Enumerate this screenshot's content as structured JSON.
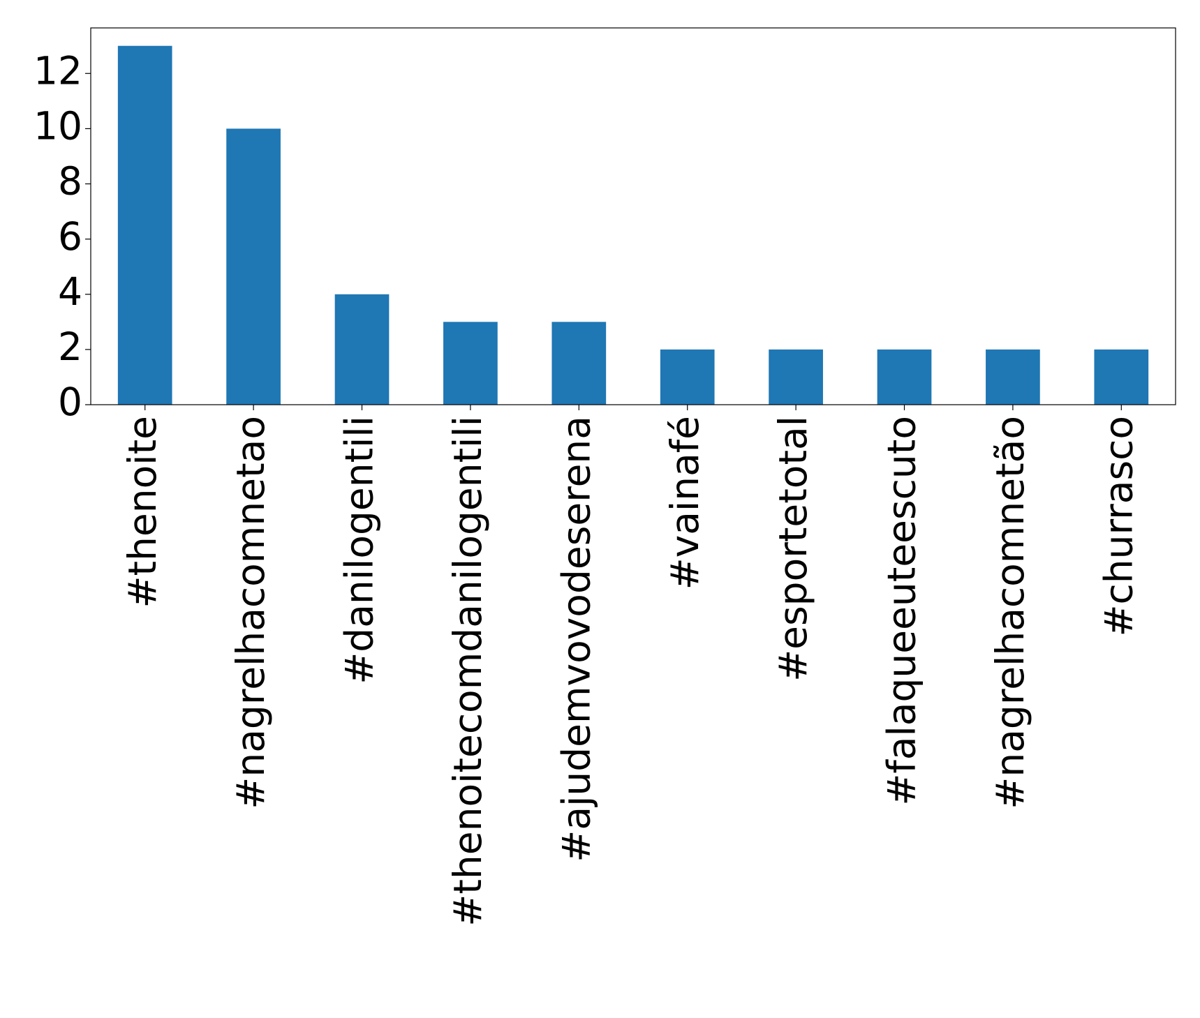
{
  "chart_data": {
    "type": "bar",
    "categories": [
      "#thenoite",
      "#nagrelhacomnetao",
      "#danilogentili",
      "#thenoitecomdanilogentili",
      "#ajudemvovodeserena",
      "#vainafé",
      "#esportetotal",
      "#falaqueeuteescuto",
      "#nagrelhacomnetão",
      "#churrasco"
    ],
    "values": [
      13,
      10,
      4,
      3,
      3,
      2,
      2,
      2,
      2,
      2
    ],
    "color": "#1f77b4",
    "ylim": [
      0,
      13.65
    ],
    "yticks": [
      0,
      2,
      4,
      6,
      8,
      10,
      12
    ],
    "grid": false
  }
}
